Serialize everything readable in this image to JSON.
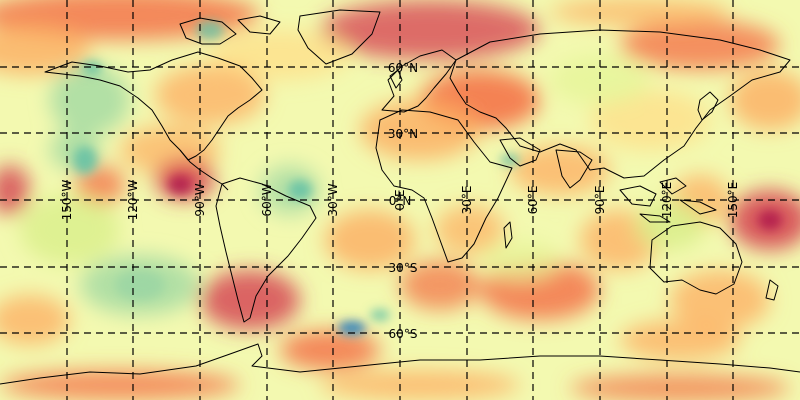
{
  "map": {
    "projection": "equirectangular",
    "colormap": "spectral",
    "colormap_stops": [
      "#5e4fa2",
      "#3288bd",
      "#66c2a5",
      "#abdda4",
      "#e6f598",
      "#ffffbf",
      "#fee08b",
      "#fdae61",
      "#f46d43",
      "#d53e4f",
      "#9e0142"
    ],
    "lat_labels": [
      "60°N",
      "30°N",
      "0°N",
      "30°S",
      "60°S"
    ],
    "lon_labels": [
      "150°W",
      "120°W",
      "90°W",
      "60°W",
      "30°W",
      "0°E",
      "30°E",
      "60°E",
      "90°E",
      "120°E",
      "150°E"
    ],
    "gridlines": "dashed"
  }
}
